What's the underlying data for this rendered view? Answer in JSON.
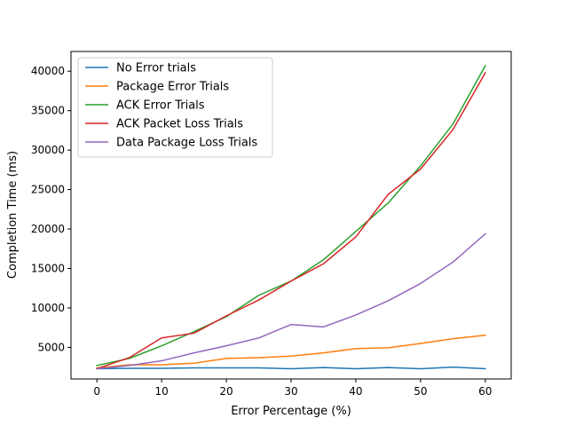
{
  "chart_data": {
    "type": "line",
    "title": "",
    "xlabel": "Error Percentage (%)",
    "ylabel": "Completion Time (ms)",
    "xlim": [
      -4,
      64
    ],
    "ylim": [
      1000,
      42500
    ],
    "xticks": [
      0,
      10,
      20,
      30,
      40,
      50,
      60
    ],
    "yticks": [
      5000,
      10000,
      15000,
      20000,
      25000,
      30000,
      35000,
      40000
    ],
    "grid": false,
    "legend_position": "top-left",
    "x": [
      0,
      5,
      10,
      15,
      20,
      25,
      30,
      35,
      40,
      45,
      50,
      55,
      60
    ],
    "series": [
      {
        "name": "No Error trials",
        "color": "#1f77b4",
        "values": [
          2300,
          2350,
          2350,
          2400,
          2400,
          2400,
          2300,
          2450,
          2300,
          2450,
          2300,
          2500,
          2300
        ]
      },
      {
        "name": "Package Error Trials",
        "color": "#ff7f0e",
        "values": [
          2400,
          2800,
          2800,
          3000,
          3600,
          3700,
          3900,
          4300,
          4850,
          4950,
          5500,
          6100,
          6550
        ]
      },
      {
        "name": "ACK Error Trials",
        "color": "#2ca02c",
        "values": [
          2700,
          3600,
          5200,
          7000,
          8900,
          11600,
          13400,
          16100,
          19700,
          23300,
          28000,
          33300,
          40700
        ]
      },
      {
        "name": "ACK Packet Loss Trials",
        "color": "#d62728",
        "values": [
          2300,
          3700,
          6200,
          6800,
          9000,
          11000,
          13400,
          15600,
          19000,
          24400,
          27600,
          32600,
          39800
        ]
      },
      {
        "name": "Data Package Loss Trials",
        "color": "#9467bd",
        "values": [
          2300,
          2700,
          3300,
          4300,
          5200,
          6200,
          7900,
          7600,
          9100,
          10900,
          13100,
          15800,
          19400
        ]
      }
    ]
  }
}
